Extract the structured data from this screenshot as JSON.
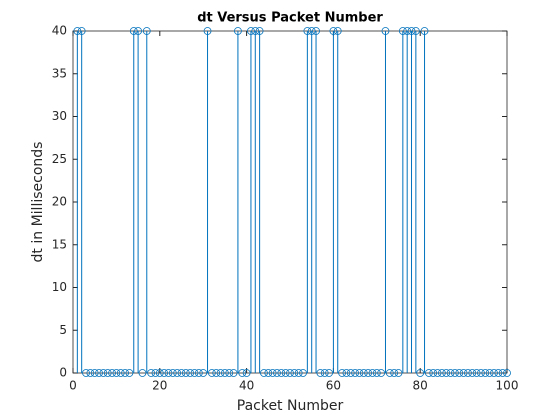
{
  "chart_data": {
    "type": "stem",
    "title": "dt Versus Packet Number",
    "xlabel": "Packet Number",
    "ylabel": "dt in Milliseconds",
    "color": "#0072bd",
    "x": [
      1,
      2,
      3,
      4,
      5,
      6,
      7,
      8,
      9,
      10,
      11,
      12,
      13,
      14,
      15,
      16,
      17,
      18,
      19,
      20,
      21,
      22,
      23,
      24,
      25,
      26,
      27,
      28,
      29,
      30,
      31,
      32,
      33,
      34,
      35,
      36,
      37,
      38,
      39,
      40,
      41,
      42,
      43,
      44,
      45,
      46,
      47,
      48,
      49,
      50,
      51,
      52,
      53,
      54,
      55,
      56,
      57,
      58,
      59,
      60,
      61,
      62,
      63,
      64,
      65,
      66,
      67,
      68,
      69,
      70,
      71,
      72,
      73,
      74,
      75,
      76,
      77,
      78,
      79,
      80,
      81,
      82,
      83,
      84,
      85,
      86,
      87,
      88,
      89,
      90,
      91,
      92,
      93,
      94,
      95,
      96,
      97,
      98,
      99,
      100
    ],
    "values": [
      40,
      40,
      0,
      0,
      0,
      0,
      0,
      0,
      0,
      0,
      0,
      0,
      0,
      40,
      40,
      0,
      40,
      0,
      0,
      0,
      0,
      0,
      0,
      0,
      0,
      0,
      0,
      0,
      0,
      0,
      40,
      0,
      0,
      0,
      0,
      0,
      0,
      40,
      0,
      0,
      40,
      40,
      40,
      0,
      0,
      0,
      0,
      0,
      0,
      0,
      0,
      0,
      0,
      40,
      40,
      40,
      0,
      0,
      0,
      40,
      40,
      0,
      0,
      0,
      0,
      0,
      0,
      0,
      0,
      0,
      0,
      40,
      0,
      0,
      0,
      40,
      40,
      40,
      40,
      0,
      40,
      0,
      0,
      0,
      0,
      0,
      0,
      0,
      0,
      0,
      0,
      0,
      0,
      0,
      0,
      0,
      0,
      0,
      0,
      0
    ],
    "xlim": [
      0,
      100
    ],
    "ylim": [
      0,
      40
    ],
    "xticks": [
      0,
      20,
      40,
      60,
      80,
      100
    ],
    "yticks": [
      0,
      5,
      10,
      15,
      20,
      25,
      30,
      35,
      40
    ],
    "grid": false
  }
}
